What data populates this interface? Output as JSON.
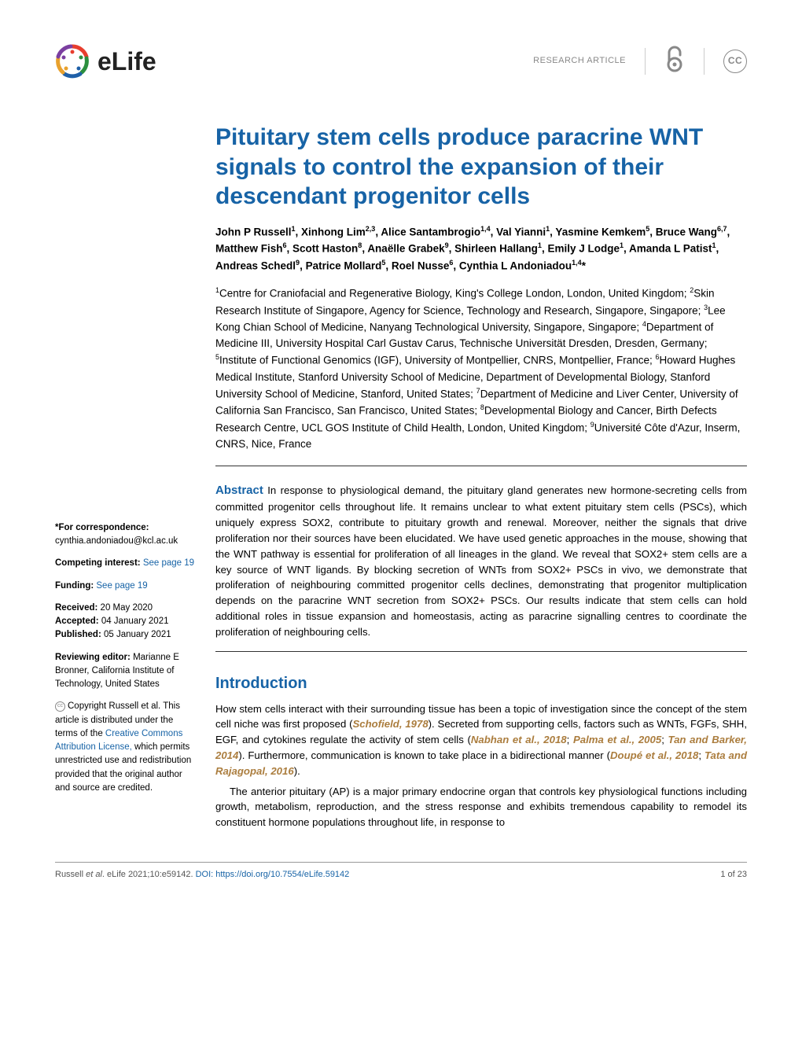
{
  "journal": {
    "name": "eLife",
    "article_type": "RESEARCH ARTICLE",
    "logo_colors": [
      "#e83e2e",
      "#2b8f3e",
      "#1e5fa8",
      "#e8a12d",
      "#7b3fa0"
    ]
  },
  "colors": {
    "heading_blue": "#1763a6",
    "cite_brown": "#ab7d3e",
    "text_black": "#000000",
    "grey_meta": "#888888",
    "divider": "#333333",
    "background": "#ffffff"
  },
  "typography": {
    "title_fontsize": 30,
    "title_weight": "bold",
    "author_fontsize": 13.5,
    "affil_fontsize": 13.5,
    "abstract_fontsize": 13.2,
    "body_fontsize": 13.2,
    "sidebar_fontsize": 11.5,
    "intro_heading_fontsize": 20,
    "footer_fontsize": 11,
    "font_family": "Arial, Helvetica, sans-serif"
  },
  "title": "Pituitary stem cells produce paracrine WNT signals to control the expansion of their descendant progenitor cells",
  "authors_html": "John P Russell<sup>1</sup>, Xinhong Lim<sup>2,3</sup>, Alice Santambrogio<sup>1,4</sup>, Val Yianni<sup>1</sup>, Yasmine Kemkem<sup>5</sup>, Bruce Wang<sup>6,7</sup>, Matthew Fish<sup>6</sup>, Scott Haston<sup>8</sup>, Anaëlle Grabek<sup>9</sup>, Shirleen Hallang<sup>1</sup>, Emily J Lodge<sup>1</sup>, Amanda L Patist<sup>1</sup>, Andreas Schedl<sup>9</sup>, Patrice Mollard<sup>5</sup>, Roel Nusse<sup>6</sup>, Cynthia L Andoniadou<sup>1,4</sup>*",
  "affiliations_html": "<sup>1</sup>Centre for Craniofacial and Regenerative Biology, King's College London, London, United Kingdom; <sup>2</sup>Skin Research Institute of Singapore, Agency for Science, Technology and Research, Singapore, Singapore; <sup>3</sup>Lee Kong Chian School of Medicine, Nanyang Technological University, Singapore, Singapore; <sup>4</sup>Department of Medicine III, University Hospital Carl Gustav Carus, Technische Universität Dresden, Dresden, Germany; <sup>5</sup>Institute of Functional Genomics (IGF), University of Montpellier, CNRS, Montpellier, France; <sup>6</sup>Howard Hughes Medical Institute, Stanford University School of Medicine, Department of Developmental Biology, Stanford University School of Medicine, Stanford, United States; <sup>7</sup>Department of Medicine and Liver Center, University of California San Francisco, San Francisco, United States; <sup>8</sup>Developmental Biology and Cancer, Birth Defects Research Centre, UCL GOS Institute of Child Health, London, United Kingdom; <sup>9</sup>Université Côte d'Azur, Inserm, CNRS, Nice, France",
  "abstract": {
    "heading": "Abstract",
    "text": "In response to physiological demand, the pituitary gland generates new hormone-secreting cells from committed progenitor cells throughout life. It remains unclear to what extent pituitary stem cells (PSCs), which uniquely express SOX2, contribute to pituitary growth and renewal. Moreover, neither the signals that drive proliferation nor their sources have been elucidated. We have used genetic approaches in the mouse, showing that the WNT pathway is essential for proliferation of all lineages in the gland. We reveal that SOX2+ stem cells are a key source of WNT ligands. By blocking secretion of WNTs from SOX2+ PSCs in vivo, we demonstrate that proliferation of neighbouring committed progenitor cells declines, demonstrating that progenitor multiplication depends on the paracrine WNT secretion from SOX2+ PSCs. Our results indicate that stem cells can hold additional roles in tissue expansion and homeostasis, acting as paracrine signalling centres to coordinate the proliferation of neighbouring cells."
  },
  "sidebar": {
    "correspondence_label": "*For correspondence:",
    "correspondence_email": "cynthia.andoniadou@kcl.ac.uk",
    "competing_label": "Competing interest:",
    "competing_link": "See page 19",
    "funding_label": "Funding:",
    "funding_link": "See page 19",
    "received_label": "Received:",
    "received_value": "20 May 2020",
    "accepted_label": "Accepted:",
    "accepted_value": "04 January 2021",
    "published_label": "Published:",
    "published_value": "05 January 2021",
    "reviewing_label": "Reviewing editor:",
    "reviewing_value": "Marianne E Bronner, California Institute of Technology, United States",
    "copyright_text_1": "Copyright Russell et al. This article is distributed under the terms of the ",
    "copyright_link": "Creative Commons Attribution License,",
    "copyright_text_2": " which permits unrestricted use and redistribution provided that the original author and source are credited."
  },
  "introduction": {
    "heading": "Introduction",
    "para1_pre": "How stem cells interact with their surrounding tissue has been a topic of investigation since the concept of the stem cell niche was first proposed (",
    "cite1": "Schofield, 1978",
    "para1_mid1": "). Secreted from supporting cells, factors such as WNTs, FGFs, SHH, EGF, and cytokines regulate the activity of stem cells (",
    "cite2": "Nabhan et al., 2018",
    "sep1": "; ",
    "cite3": "Palma et al., 2005",
    "sep2": "; ",
    "cite4": "Tan and Barker, 2014",
    "para1_mid2": "). Furthermore, communication is known to take place in a bidirectional manner (",
    "cite5": "Doupé et al., 2018",
    "sep3": "; ",
    "cite6": "Tata and Rajagopal, 2016",
    "para1_end": ").",
    "para2": "The anterior pituitary (AP) is a major primary endocrine organ that controls key physiological functions including growth, metabolism, reproduction, and the stress response and exhibits tremendous capability to remodel its constituent hormone populations throughout life, in response to"
  },
  "footer": {
    "citation_pre": "Russell ",
    "citation_mid": "et al",
    "citation_post": ". eLife 2021;10:e59142. ",
    "doi_label": "DOI: https://doi.org/10.7554/eLife.59142",
    "page_num": "1 of 23"
  }
}
